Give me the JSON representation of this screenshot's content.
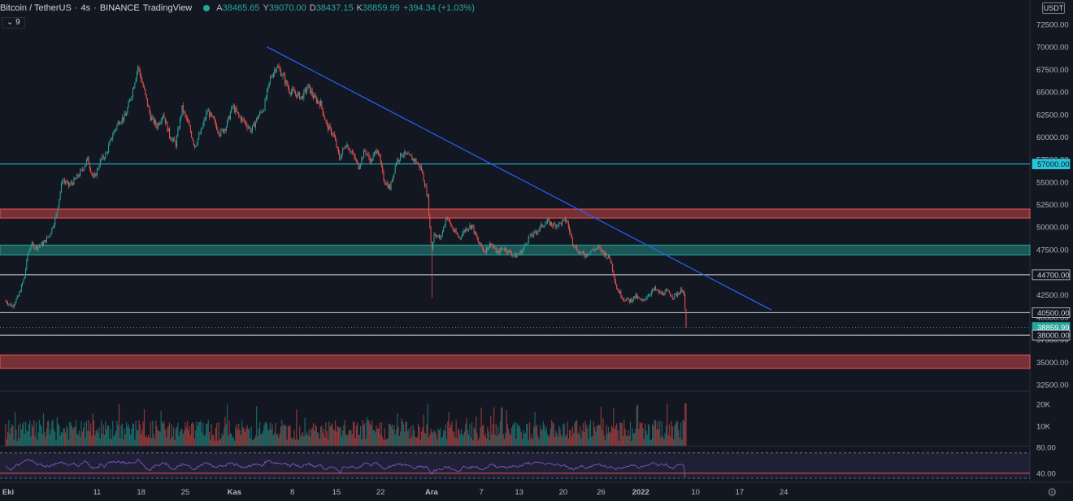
{
  "header": {
    "symbol": "Bitcoin / TetherUS",
    "interval": "4s",
    "exchange": "BINANCE",
    "source": "TradingView",
    "open_label": "A",
    "open": "38465.65",
    "high_label": "Y",
    "high": "39070.00",
    "low_label": "D",
    "low": "38437.15",
    "close_label": "K",
    "close": "38859.99",
    "change": "+394.34 (+1.03%)",
    "sub_indicator": "9"
  },
  "currency_button": "USDT",
  "settings_icon": "gear-icon",
  "colors": {
    "background": "#131722",
    "up": "#26a69a",
    "down": "#ef5350",
    "trendline": "#2962ff",
    "cyan_line": "#26c6da",
    "rsi": "#7e57c2"
  },
  "chart_data": {
    "type": "candlestick",
    "y_axis_ticks": [
      "72500.00",
      "70000.00",
      "67500.00",
      "65000.00",
      "62500.00",
      "60000.00",
      "57500.00",
      "55000.00",
      "52500.00",
      "50000.00",
      "47500.00",
      "45000.00",
      "42500.00",
      "40000.00",
      "37500.00",
      "35000.00",
      "32500.00"
    ],
    "ylim": [
      31900,
      74000
    ],
    "x_axis_ticks": [
      "Eki",
      "11",
      "18",
      "25",
      "Kas",
      "8",
      "15",
      "22",
      "Ara",
      "7",
      "13",
      "20",
      "26",
      "2022",
      "10",
      "17",
      "24"
    ],
    "x_range_days": [
      0,
      108
    ],
    "price_path": [
      [
        0,
        41800
      ],
      [
        1,
        41200
      ],
      [
        2,
        42300
      ],
      [
        3,
        44500
      ],
      [
        3.5,
        47000
      ],
      [
        4,
        48000
      ],
      [
        5,
        47800
      ],
      [
        6,
        48200
      ],
      [
        7,
        49200
      ],
      [
        8,
        51200
      ],
      [
        9,
        55300
      ],
      [
        10,
        54600
      ],
      [
        11,
        55200
      ],
      [
        12,
        56200
      ],
      [
        13,
        57500
      ],
      [
        14,
        55300
      ],
      [
        15,
        57300
      ],
      [
        16,
        58200
      ],
      [
        17,
        60300
      ],
      [
        18,
        61800
      ],
      [
        19,
        62300
      ],
      [
        20,
        64800
      ],
      [
        21,
        67800
      ],
      [
        22,
        65100
      ],
      [
        23,
        62200
      ],
      [
        24,
        61200
      ],
      [
        25,
        62600
      ],
      [
        26,
        60200
      ],
      [
        27,
        59200
      ],
      [
        28,
        63200
      ],
      [
        29,
        61400
      ],
      [
        30,
        59000
      ],
      [
        31,
        60600
      ],
      [
        32,
        62900
      ],
      [
        33,
        61800
      ],
      [
        34,
        60400
      ],
      [
        35,
        61200
      ],
      [
        36,
        63400
      ],
      [
        37,
        62300
      ],
      [
        38,
        61600
      ],
      [
        39,
        60700
      ],
      [
        40,
        62200
      ],
      [
        41,
        63300
      ],
      [
        42,
        66500
      ],
      [
        43,
        67900
      ],
      [
        44,
        66800
      ],
      [
        45,
        65200
      ],
      [
        46,
        64800
      ],
      [
        47,
        64400
      ],
      [
        48,
        65600
      ],
      [
        49,
        64300
      ],
      [
        50,
        63700
      ],
      [
        51,
        61200
      ],
      [
        52,
        60300
      ],
      [
        53,
        57600
      ],
      [
        54,
        59300
      ],
      [
        55,
        58200
      ],
      [
        56,
        56700
      ],
      [
        57,
        58500
      ],
      [
        58,
        57300
      ],
      [
        59,
        58800
      ],
      [
        60,
        55300
      ],
      [
        61,
        54300
      ],
      [
        62,
        57300
      ],
      [
        63,
        58200
      ],
      [
        64,
        57800
      ],
      [
        65,
        57400
      ],
      [
        66,
        56400
      ],
      [
        67,
        53300
      ],
      [
        67.6,
        47300
      ],
      [
        68,
        49300
      ],
      [
        69,
        48700
      ],
      [
        70,
        51200
      ],
      [
        71,
        49700
      ],
      [
        72,
        48800
      ],
      [
        73,
        49800
      ],
      [
        74,
        50200
      ],
      [
        75,
        48300
      ],
      [
        76,
        47300
      ],
      [
        77,
        48200
      ],
      [
        78,
        47100
      ],
      [
        79,
        47700
      ],
      [
        80,
        47200
      ],
      [
        81,
        46800
      ],
      [
        82,
        47400
      ],
      [
        83,
        48800
      ],
      [
        84,
        49300
      ],
      [
        85,
        50100
      ],
      [
        86,
        50600
      ],
      [
        87,
        50200
      ],
      [
        88,
        50400
      ],
      [
        89,
        50800
      ],
      [
        90,
        48300
      ],
      [
        91,
        47200
      ],
      [
        92,
        46900
      ],
      [
        93,
        47400
      ],
      [
        94,
        47700
      ],
      [
        95,
        47100
      ],
      [
        96,
        46400
      ],
      [
        97,
        43200
      ],
      [
        98,
        42100
      ],
      [
        99,
        41800
      ],
      [
        100,
        42300
      ],
      [
        101,
        41700
      ],
      [
        102,
        42500
      ],
      [
        103,
        43100
      ],
      [
        104,
        42600
      ],
      [
        105,
        42800
      ],
      [
        106,
        42300
      ],
      [
        107,
        42800
      ],
      [
        107.6,
        43200
      ],
      [
        108,
        38860
      ]
    ],
    "current_price": 38859.99,
    "price_labels": [
      {
        "value": 57000,
        "text": "57000.00"
      },
      {
        "value": 44700,
        "text": "44700.00"
      },
      {
        "value": 40500,
        "text": "40500.00"
      },
      {
        "value": 38859.99,
        "text": "38859.99"
      },
      {
        "value": 38000,
        "text": "38000.00"
      }
    ],
    "horizontal_lines": [
      57000,
      44700,
      40500,
      38000
    ],
    "zones": [
      {
        "from": 51000,
        "to": 52000,
        "color": "red"
      },
      {
        "from": 46900,
        "to": 48000,
        "color": "green"
      },
      {
        "from": 34300,
        "to": 35800,
        "color": "red"
      }
    ],
    "trendline": {
      "start": [
        41.5,
        70000
      ],
      "end": [
        121.5,
        40800
      ]
    },
    "volume_axis": [
      "20K",
      "10K"
    ],
    "rsi_axis": [
      "80.00",
      "40.00"
    ],
    "rsi_levels": [
      70,
      30
    ],
    "rsi_range": [
      25,
      80
    ]
  }
}
